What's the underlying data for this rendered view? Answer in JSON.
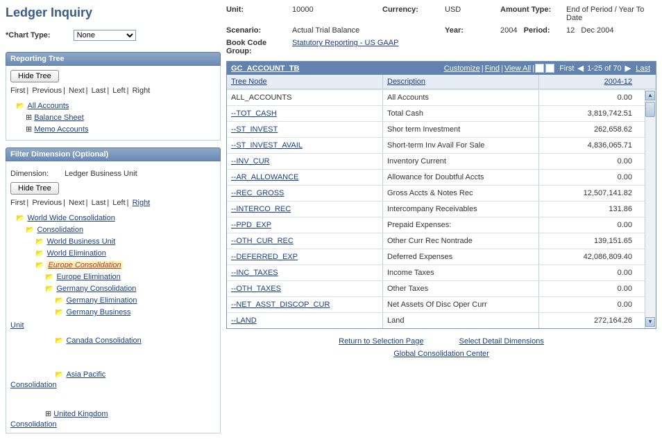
{
  "page_title": "Ledger Inquiry",
  "chart_type": {
    "label": "*Chart Type:",
    "value": "None",
    "options": [
      "None"
    ]
  },
  "reporting_tree": {
    "header": "Reporting Tree",
    "hide_btn": "Hide Tree",
    "nav": {
      "first": "First",
      "previous": "Previous",
      "next": "Next",
      "last": "Last",
      "left": "Left",
      "right": "Right"
    },
    "root": "All Accounts",
    "children": [
      "Balance Sheet",
      "Memo Accounts"
    ]
  },
  "filter_dimension": {
    "header": "Filter Dimension (Optional)",
    "dim_label": "Dimension:",
    "dim_value": "Ledger Business Unit",
    "hide_btn": "Hide Tree",
    "nav": {
      "first": "First",
      "previous": "Previous",
      "next": "Next",
      "last": "Last",
      "left": "Left",
      "right": "Right"
    },
    "tree": [
      {
        "level": 1,
        "label": "World Wide Consolidation"
      },
      {
        "level": 2,
        "label": "Consolidation"
      },
      {
        "level": 3,
        "label": "World Business Unit"
      },
      {
        "level": 3,
        "label": "World Elimination"
      },
      {
        "level": 3,
        "label": "Europe Consolidation",
        "highlight": true
      },
      {
        "level": 4,
        "label": "Europe Elimination"
      },
      {
        "level": 4,
        "label": "Germany Consolidation"
      },
      {
        "level": 5,
        "label": "Germany Elimination"
      },
      {
        "level": 5,
        "label": "Germany Business"
      }
    ],
    "broken1": "Unit",
    "canada": "Canada Consolidation",
    "asia": "Asia Pacific",
    "broken2": "Consolidation",
    "uk": "United Kingdom",
    "broken3": "Consolidation"
  },
  "header_info": {
    "unit_lbl": "Unit:",
    "unit_val": "10000",
    "currency_lbl": "Currency:",
    "currency_val": "USD",
    "amount_type_lbl": "Amount Type:",
    "amount_type_val": "End of Period / Year To Date",
    "scenario_lbl": "Scenario:",
    "scenario_val": "Actual Trial Balance",
    "year_lbl": "Year:",
    "year_val": "2004",
    "period_lbl": "Period:",
    "period_val": "12",
    "period_desc": "Dec 2004",
    "book_lbl": "Book Code Group:",
    "book_val": "Statutory Reporting - US GAAP"
  },
  "table": {
    "name": "GC_ACCOUNT_TB",
    "links": {
      "customize": "Customize",
      "find": "Find",
      "view_all": "View All"
    },
    "pager": {
      "first": "First",
      "range": "1-25 of 70",
      "last": "Last"
    },
    "columns": {
      "node": "Tree Node",
      "desc": "Description",
      "amt": "2004-12"
    },
    "rows": [
      {
        "node": "ALL_ACCOUNTS",
        "node_link": false,
        "desc": "All Accounts",
        "amt": "0.00"
      },
      {
        "node": "--TOT_CASH",
        "node_link": true,
        "desc": "Total Cash",
        "amt": "3,819,742.51"
      },
      {
        "node": "--ST_INVEST",
        "node_link": true,
        "desc": "Shor term Investment",
        "amt": "262,658.62"
      },
      {
        "node": "--ST_INVEST_AVAIL",
        "node_link": true,
        "desc": "Short-term Inv Avail For Sale",
        "amt": "4,836,065.71"
      },
      {
        "node": "--INV_CUR",
        "node_link": true,
        "desc": "Inventory Current",
        "amt": "0.00"
      },
      {
        "node": "--AR_ALLOWANCE",
        "node_link": true,
        "desc": "Allowance for Doubtful Accts",
        "amt": "0.00"
      },
      {
        "node": "--REC_GROSS",
        "node_link": true,
        "desc": "Gross Accts & Notes Rec",
        "amt": "12,507,141.82"
      },
      {
        "node": "--INTERCO_REC",
        "node_link": true,
        "desc": "Intercompany Receivables",
        "amt": "131.86"
      },
      {
        "node": "--PPD_EXP",
        "node_link": true,
        "desc": "Prepaid Expenses:",
        "amt": "0.00"
      },
      {
        "node": "--OTH_CUR_REC",
        "node_link": true,
        "desc": "Other Curr Rec Nontrade",
        "amt": "139,151.65"
      },
      {
        "node": "--DEFERRED_EXP",
        "node_link": true,
        "desc": "Deferred Expenses",
        "amt": "42,086,809.40"
      },
      {
        "node": "--INC_TAXES",
        "node_link": true,
        "desc": "Income Taxes",
        "amt": "0.00"
      },
      {
        "node": "--OTH_TAXES",
        "node_link": true,
        "desc": "Other Taxes",
        "amt": "0.00"
      },
      {
        "node": "--NET_ASST_DISCOP_CUR",
        "node_link": true,
        "desc": "Net Assets Of Disc Oper Curr",
        "amt": "0.00"
      },
      {
        "node": "--LAND",
        "node_link": true,
        "desc": "Land",
        "amt": "272,164.26"
      }
    ]
  },
  "footer": {
    "return": "Return to Selection Page",
    "select": "Select Detail Dimensions",
    "global": "Global Consolidation Center"
  }
}
